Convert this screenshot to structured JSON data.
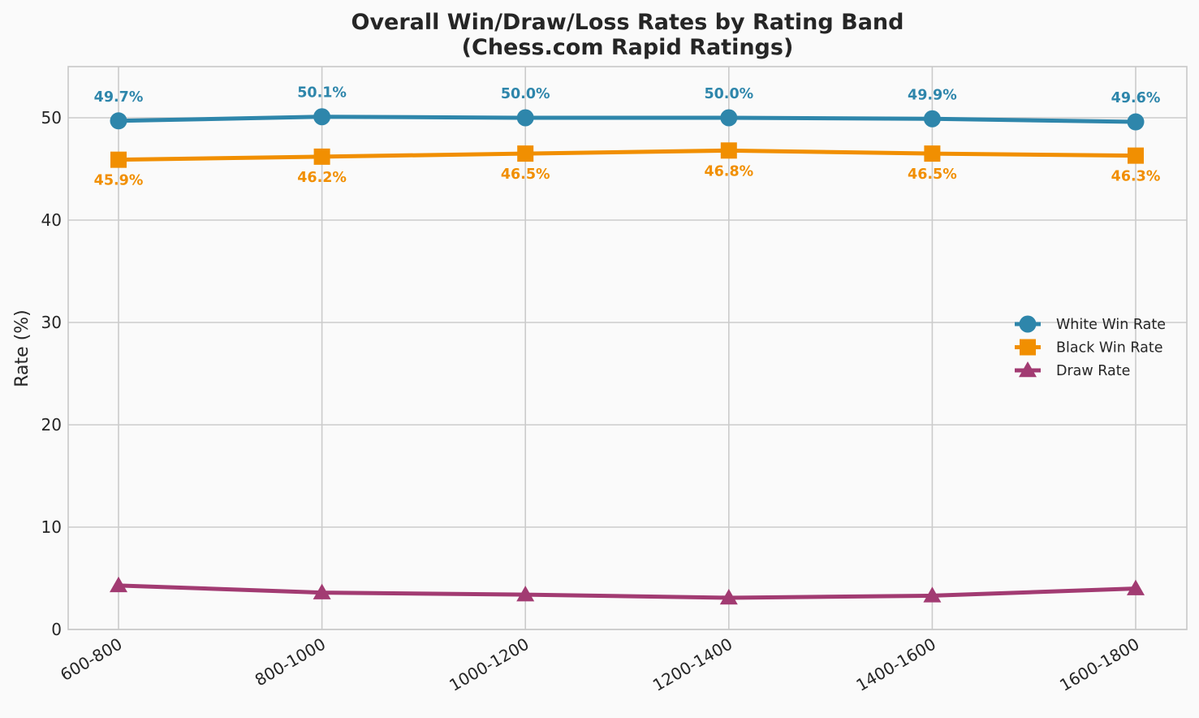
{
  "chart_data": {
    "type": "line",
    "title": "Overall Win/Draw/Loss Rates by Rating Band\n(Chess.com Rapid Ratings)",
    "xlabel": "",
    "ylabel": "Rate (%)",
    "categories": [
      "600-800",
      "800-1000",
      "1000-1200",
      "1200-1400",
      "1400-1600",
      "1600-1800"
    ],
    "ylim": [
      0,
      55
    ],
    "yticks": [
      0,
      10,
      20,
      30,
      40,
      50
    ],
    "grid": true,
    "legend_position": "center-right",
    "series": [
      {
        "name": "White Win Rate",
        "color": "#2e86ab",
        "marker": "circle",
        "values": [
          49.7,
          50.1,
          50.0,
          50.0,
          49.9,
          49.6
        ],
        "data_labels": [
          "49.7%",
          "50.1%",
          "50.0%",
          "50.0%",
          "49.9%",
          "49.6%"
        ],
        "label_position": "above"
      },
      {
        "name": "Black Win Rate",
        "color": "#f18f01",
        "marker": "square",
        "values": [
          45.9,
          46.2,
          46.5,
          46.8,
          46.5,
          46.3
        ],
        "data_labels": [
          "45.9%",
          "46.2%",
          "46.5%",
          "46.8%",
          "46.5%",
          "46.3%"
        ],
        "label_position": "below"
      },
      {
        "name": "Draw Rate",
        "color": "#a23b72",
        "marker": "triangle",
        "values": [
          4.3,
          3.6,
          3.4,
          3.1,
          3.3,
          4.0
        ],
        "data_labels": [],
        "label_position": "none"
      }
    ]
  }
}
